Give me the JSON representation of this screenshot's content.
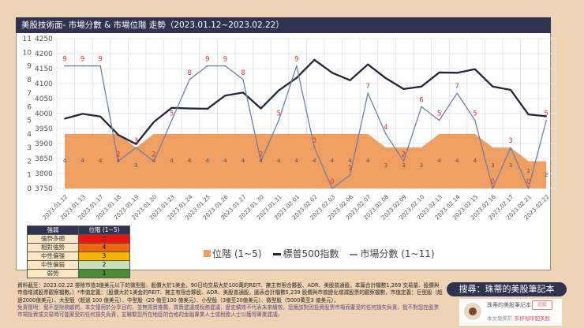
{
  "title": "美股技術面- 市場分數 & 市場位階 走勢（2023.01.12~2023.02.22）",
  "chart_data": {
    "type": "line",
    "title": "美股技術面- 市場分數 & 市場位階 走勢（2023.01.12~2023.02.22）",
    "categories": [
      "2023.01.12",
      "2023.01.13",
      "2023.01.17",
      "2023.01.18",
      "2023.01.19",
      "2023.01.20",
      "2023.01.23",
      "2023.01.24",
      "2023.01.25",
      "2023.01.26",
      "2023.01.27",
      "2023.01.30",
      "2023.01.31",
      "2023.02.01",
      "2023.02.02",
      "2023.02.03",
      "2023.02.06",
      "2023.02.07",
      "2023.02.08",
      "2023.02.09",
      "2023.02.10",
      "2023.02.13",
      "2023.02.14",
      "2023.02.15",
      "2023.02.16",
      "2023.02.17",
      "2023.02.21",
      "2023.02.22"
    ],
    "series": [
      {
        "name": "位階 (1~5)",
        "type": "area",
        "axis": "left",
        "color": "#ef9f62",
        "values": [
          4,
          4,
          4,
          4,
          3,
          4,
          4,
          4,
          4,
          4,
          4,
          4,
          4,
          4,
          4,
          4,
          4,
          4,
          3,
          3,
          3,
          4,
          4,
          4,
          3,
          3,
          2,
          2
        ]
      },
      {
        "name": "標普500指數",
        "type": "line",
        "axis": "right",
        "color": "#23263a",
        "values": [
          3983,
          3999,
          3990,
          3929,
          3898,
          3972,
          4019,
          4017,
          4016,
          4060,
          4070,
          4017,
          4077,
          4119,
          4179,
          4136,
          4111,
          4164,
          4118,
          4082,
          4090,
          4137,
          4136,
          4148,
          4090,
          4079,
          3997,
          3991
        ]
      },
      {
        "name": "市場分數 (1~11)",
        "type": "line",
        "axis": "left",
        "color": "#6f7fa8",
        "values": [
          9,
          9,
          9,
          2,
          3,
          2,
          5,
          8,
          9,
          9,
          8,
          2,
          5,
          9,
          3,
          0,
          1,
          7,
          4,
          2,
          6,
          5,
          7,
          5,
          0,
          3,
          0,
          5
        ]
      }
    ],
    "left_axis": {
      "range": [
        0,
        11
      ],
      "ticks": [
        "0",
        "1",
        "2",
        "3",
        "4",
        "5",
        "6",
        "7",
        "8",
        "9",
        "10",
        "11"
      ]
    },
    "right_axis": {
      "range": [
        3750,
        4250
      ],
      "ticks": [
        "3750",
        "3800",
        "3850",
        "3900",
        "3950",
        "4000",
        "4050",
        "4100",
        "4150",
        "4200",
        "4250"
      ]
    },
    "grid": true,
    "legend_position": "bottom"
  },
  "legend": {
    "area": "位階 (1~5)",
    "sp500": "標普500指數",
    "score": "市場分數 (1~11)"
  },
  "level_table": {
    "headers": [
      "強弱",
      "位階 (1~5)"
    ],
    "rows": [
      {
        "label": "強勢多頭",
        "value": "5",
        "color": "#e8150f"
      },
      {
        "label": "相對強勢",
        "value": "4",
        "color": "#f0660f"
      },
      {
        "label": "中性偏強",
        "value": "3",
        "color": "#f5b400"
      },
      {
        "label": "中性偏弱",
        "value": "2",
        "color": "#c7e0b4"
      },
      {
        "label": "弱勢",
        "value": "1",
        "color": "#4c8a37"
      }
    ]
  },
  "footnote": "資料截至：2023.02.22 排除市值3億美元以下的微型股、股價大於1美金，90日均交易大於100萬的REIT、擁主有限合夥股、ADR、美股普通股，本篇合計檔數1,269 交易量、股價與市值增減股票觀察檔數。）*市值定義：（股價大於1美金的REIT、擁主有限合夥股、ADR、美股普通股，圖表合計檔數5,239 股價與市值變化增減股票的觀察檔數，市值定義：巨型股（超過2000億美元）、大型股（超過 100 億美元）、中型股（20 億至100 億美元）、小型股（3億至20億美元）、微型股（5000萬至3 億美元）。",
  "disclaimer": "免責聲明：我不是財務顧問，本文僅用於分享目的，並無買賣推薦，買賣建議或稅務建議，歷史績效不代表未來績效，您應該對因投資股票市場而蒙受的任何損失負責，我不對您在股票市場投資或交易時可能蒙受的任何損失負責，並聯繫您所在地區的合格的金融專業人士或稅務人士以獲得專業建議。",
  "search_banner": "搜尋：珠蒂的美股筆記本",
  "card": {
    "name": "珠蒂的美股筆記本",
    "follow": "追蹤",
    "published_prefix": "本文發佈於",
    "published_in": "來杯咖啡配美股"
  }
}
